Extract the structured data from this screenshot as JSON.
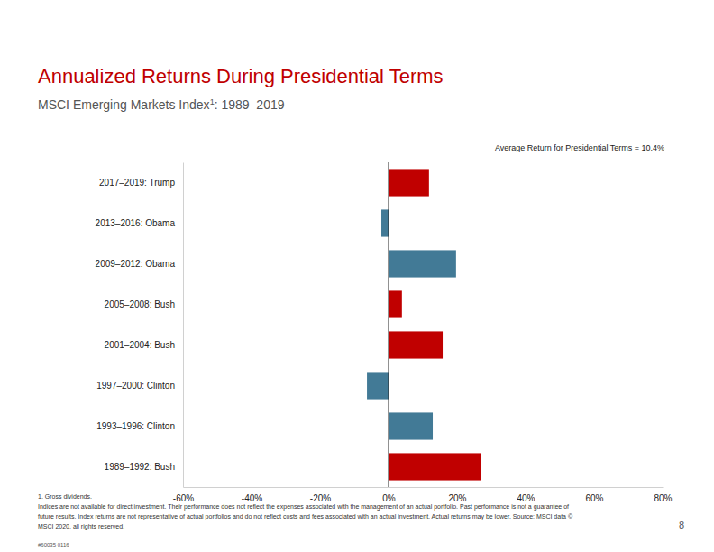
{
  "chart_data": {
    "type": "bar",
    "orientation": "horizontal",
    "title": "Annualized Returns During Presidential Terms",
    "subtitle": [
      "MSCI Emerging Markets Index",
      "1",
      ": 1989–2019"
    ],
    "annotation": "Average Return for Presidential Terms = 10.4%",
    "categories": [
      "2017–2019: Trump",
      "2013–2016: Obama",
      "2009–2012: Obama",
      "2005–2008: Bush",
      "2001–2004: Bush",
      "1997–2000: Clinton",
      "1993–1996: Clinton",
      "1989–1992: Bush"
    ],
    "values": [
      11.8,
      -2.1,
      19.7,
      3.9,
      15.8,
      -6.3,
      12.9,
      27.1
    ],
    "colors": [
      "#c00000",
      "#427a96",
      "#427a96",
      "#c00000",
      "#c00000",
      "#427a96",
      "#427a96",
      "#c00000"
    ],
    "xlim": [
      -60,
      80
    ],
    "xticks": [
      {
        "value": -60,
        "label": "-60%"
      },
      {
        "value": -40,
        "label": "-40%"
      },
      {
        "value": -20,
        "label": "-20%"
      },
      {
        "value": 0,
        "label": "0%"
      },
      {
        "value": 20,
        "label": "20%"
      },
      {
        "value": 40,
        "label": "40%"
      },
      {
        "value": 60,
        "label": "60%"
      },
      {
        "value": 80,
        "label": "80%"
      }
    ],
    "grid": false,
    "data_labels": false,
    "footnotes": [
      "1. Gross dividends.",
      "Indices are not available for direct investment. Their performance does not reflect the expenses associated with the management of an actual portfolio. Past performance is not a guarantee of",
      "future results. Index returns are not representative of actual portfolios and do not reflect costs and fees associated with an actual investment. Actual returns may be lower. Source: MSCI data ©",
      "MSCI 2020, all rights reserved."
    ],
    "page_number": "8",
    "code": "#60035 0116"
  }
}
